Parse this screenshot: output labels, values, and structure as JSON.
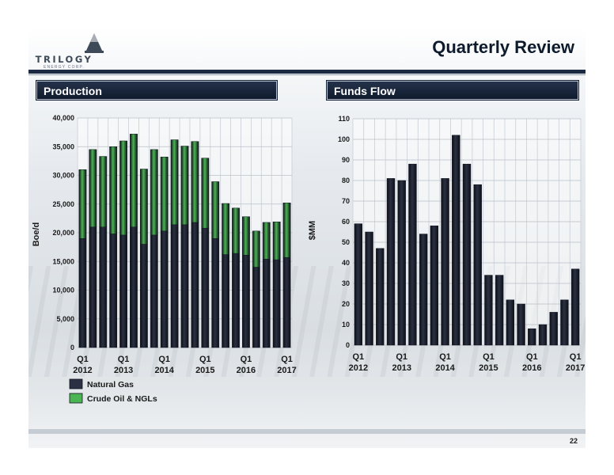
{
  "header": {
    "title": "Quarterly Review",
    "page_number": "22"
  },
  "logo": {
    "name": "TRILOGY",
    "subtitle": "ENERGY CORP."
  },
  "colors": {
    "navy_bar": "#1b2a42",
    "gas": "#2b3142",
    "oil": "#4bb453",
    "bar_fill": "#2b3142"
  },
  "chart_data": [
    {
      "panel_title": "Production",
      "type": "bar",
      "stacked": true,
      "ylabel": "Boe/d",
      "ylim": [
        0,
        40000
      ],
      "yticks": [
        "0",
        "5,000",
        "10,000",
        "15,000",
        "20,000",
        "25,000",
        "30,000",
        "35,000",
        "40,000"
      ],
      "ytick_values": [
        0,
        5000,
        10000,
        15000,
        20000,
        25000,
        30000,
        35000,
        40000
      ],
      "xtick_labels": [
        {
          "index": 0,
          "q": "Q1",
          "year": "2012"
        },
        {
          "index": 4,
          "q": "Q1",
          "year": "2013"
        },
        {
          "index": 8,
          "q": "Q1",
          "year": "2014"
        },
        {
          "index": 12,
          "q": "Q1",
          "year": "2015"
        },
        {
          "index": 16,
          "q": "Q1",
          "year": "2016"
        },
        {
          "index": 20,
          "q": "Q1",
          "year": "2017"
        }
      ],
      "grid": true,
      "legend": "bottom-left",
      "series": [
        {
          "name": "Natural Gas",
          "color": "#2b3142",
          "values": [
            19000,
            21000,
            21000,
            19800,
            19600,
            21000,
            18000,
            19600,
            20300,
            21400,
            21400,
            21800,
            20800,
            19000,
            16200,
            16400,
            16100,
            14000,
            15400,
            15300,
            15700
          ]
        },
        {
          "name": "Crude Oil & NGLs",
          "color": "#4bb453",
          "values": [
            12000,
            13500,
            12300,
            15200,
            16400,
            16200,
            13100,
            14900,
            12900,
            14800,
            13700,
            14100,
            12200,
            9900,
            8900,
            7900,
            6700,
            6300,
            6400,
            6600,
            9500
          ]
        }
      ]
    },
    {
      "panel_title": "Funds Flow",
      "type": "bar",
      "ylabel": "$MM",
      "ylim": [
        0,
        110
      ],
      "yticks": [
        "0",
        "10",
        "20",
        "30",
        "40",
        "50",
        "60",
        "70",
        "80",
        "90",
        "100",
        "110"
      ],
      "ytick_values": [
        0,
        10,
        20,
        30,
        40,
        50,
        60,
        70,
        80,
        90,
        100,
        110
      ],
      "xtick_labels": [
        {
          "index": 0,
          "q": "Q1",
          "year": "2012"
        },
        {
          "index": 4,
          "q": "Q1",
          "year": "2013"
        },
        {
          "index": 8,
          "q": "Q1",
          "year": "2014"
        },
        {
          "index": 12,
          "q": "Q1",
          "year": "2015"
        },
        {
          "index": 16,
          "q": "Q1",
          "year": "2016"
        },
        {
          "index": 20,
          "q": "Q1",
          "year": "2017"
        }
      ],
      "grid": true,
      "values": [
        59,
        55,
        47,
        81,
        80,
        88,
        54,
        58,
        81,
        102,
        88,
        78,
        34,
        34,
        22,
        20,
        8,
        10,
        16,
        22,
        37
      ]
    }
  ]
}
